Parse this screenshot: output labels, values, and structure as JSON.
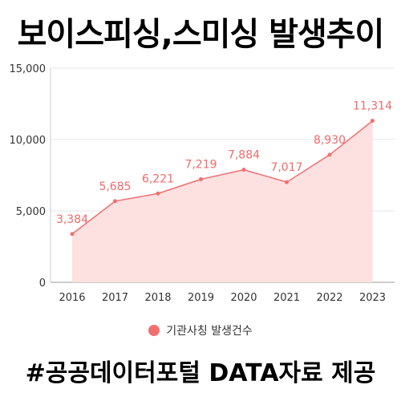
{
  "title": "보이스피싱,스미싱 발생추이",
  "footer": "#공공데이터포털 DATA자료 제공",
  "colors": {
    "line": "#f07070",
    "area": "#fde0e0",
    "label": "#ef6b6b",
    "legend_dot": "#f07070"
  },
  "chart_data": {
    "type": "area",
    "categories": [
      "2016",
      "2017",
      "2018",
      "2019",
      "2020",
      "2021",
      "2022",
      "2023"
    ],
    "series": [
      {
        "name": "기관사칭 발생건수",
        "values": [
          3384,
          5685,
          6221,
          7219,
          7884,
          7017,
          8930,
          11314
        ]
      }
    ],
    "data_labels": [
      "3,384",
      "5,685",
      "6,221",
      "7,219",
      "7,884",
      "7,017",
      "8,930",
      "11,314"
    ],
    "y_ticks": [
      0,
      5000,
      10000,
      15000
    ],
    "y_tick_labels": [
      "0",
      "5,000",
      "10,000",
      "15,000"
    ],
    "ylim": [
      0,
      15000
    ],
    "grid": true,
    "legend": "bottom-center"
  }
}
